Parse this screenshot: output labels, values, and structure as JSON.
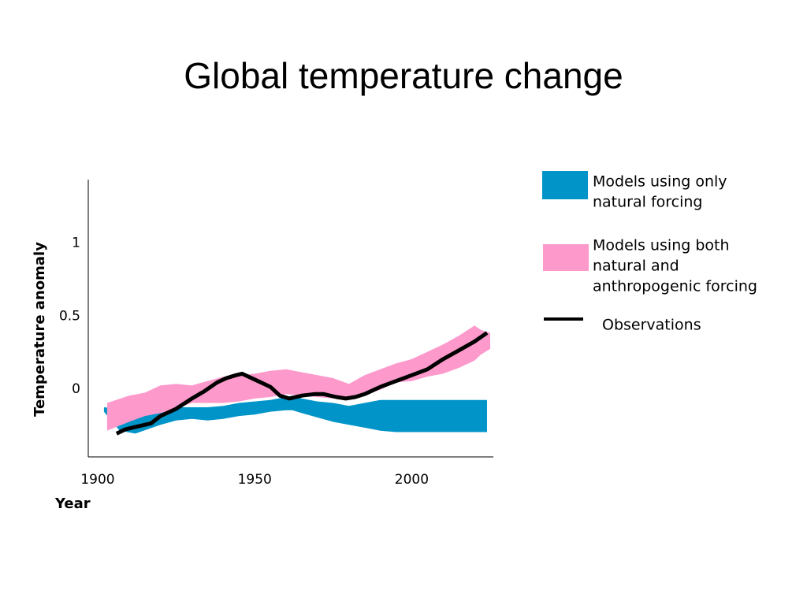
{
  "slide": {
    "title": "Global temperature change"
  },
  "chart_data": {
    "type": "area",
    "title": "Global temperature change",
    "xlabel": "Year",
    "ylabel": "Temperature anomaly",
    "xlim": [
      1897,
      2026
    ],
    "ylim": [
      -0.47,
      1.43
    ],
    "x_ticks": [
      1900,
      1950,
      2000
    ],
    "y_ticks": [
      0,
      0.5,
      1
    ],
    "grid": false,
    "legend_position": "right",
    "series": [
      {
        "name": "Models using only natural forcing",
        "kind": "band",
        "color": "#0094c8",
        "x": [
          1902,
          1907,
          1912,
          1920,
          1925,
          1930,
          1935,
          1940,
          1945,
          1950,
          1955,
          1960,
          1962,
          1965,
          1970,
          1975,
          1980,
          1985,
          1990,
          1995,
          2000,
          2005,
          2010,
          2015,
          2020,
          2024
        ],
        "upper": [
          -0.13,
          -0.14,
          -0.17,
          -0.16,
          -0.13,
          -0.13,
          -0.13,
          -0.12,
          -0.1,
          -0.09,
          -0.08,
          -0.06,
          -0.05,
          -0.07,
          -0.09,
          -0.1,
          -0.12,
          -0.1,
          -0.08,
          -0.08,
          -0.08,
          -0.08,
          -0.08,
          -0.08,
          -0.08,
          -0.08
        ],
        "lower": [
          -0.16,
          -0.29,
          -0.31,
          -0.25,
          -0.22,
          -0.21,
          -0.22,
          -0.21,
          -0.19,
          -0.18,
          -0.16,
          -0.15,
          -0.15,
          -0.17,
          -0.2,
          -0.23,
          -0.25,
          -0.27,
          -0.29,
          -0.3,
          -0.3,
          -0.3,
          -0.3,
          -0.3,
          -0.3,
          -0.3
        ]
      },
      {
        "name": "Models using both natural and anthropogenic forcing",
        "kind": "band",
        "color": "#fe99cc",
        "x": [
          1903,
          1910,
          1915,
          1920,
          1925,
          1930,
          1935,
          1940,
          1945,
          1950,
          1955,
          1960,
          1965,
          1970,
          1975,
          1980,
          1985,
          1990,
          1995,
          2000,
          2005,
          2010,
          2015,
          2020,
          2022,
          2025
        ],
        "upper": [
          -0.1,
          -0.05,
          -0.03,
          0.02,
          0.03,
          0.02,
          0.05,
          0.08,
          0.09,
          0.1,
          0.12,
          0.13,
          0.11,
          0.09,
          0.07,
          0.03,
          0.09,
          0.13,
          0.17,
          0.2,
          0.25,
          0.3,
          0.36,
          0.43,
          0.4,
          0.38
        ],
        "lower": [
          -0.29,
          -0.23,
          -0.19,
          -0.17,
          -0.14,
          -0.1,
          -0.1,
          -0.1,
          -0.09,
          -0.07,
          -0.06,
          -0.04,
          -0.05,
          -0.06,
          -0.07,
          -0.08,
          -0.04,
          -0.01,
          0.04,
          0.05,
          0.08,
          0.1,
          0.14,
          0.19,
          0.23,
          0.27
        ]
      },
      {
        "name": "Observations",
        "kind": "line",
        "color": "#000000",
        "x": [
          1906,
          1909,
          1913,
          1917,
          1920,
          1925,
          1930,
          1934,
          1938,
          1941,
          1944,
          1946,
          1950,
          1955,
          1958,
          1961,
          1965,
          1969,
          1972,
          1976,
          1979,
          1982,
          1985,
          1990,
          1995,
          2000,
          2005,
          2010,
          2015,
          2020,
          2024
        ],
        "y": [
          -0.31,
          -0.28,
          -0.26,
          -0.24,
          -0.19,
          -0.14,
          -0.07,
          -0.02,
          0.04,
          0.07,
          0.09,
          0.1,
          0.06,
          0.01,
          -0.05,
          -0.07,
          -0.05,
          -0.04,
          -0.04,
          -0.06,
          -0.07,
          -0.06,
          -0.04,
          0.01,
          0.05,
          0.09,
          0.13,
          0.2,
          0.26,
          0.32,
          0.38
        ]
      }
    ]
  }
}
